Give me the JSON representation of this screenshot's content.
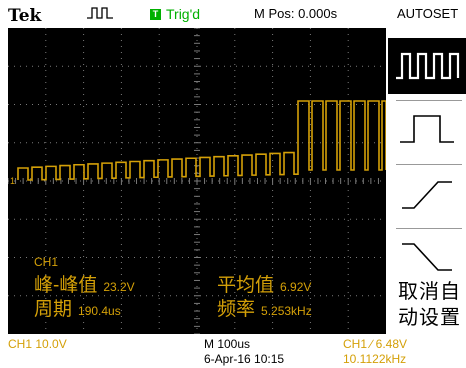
{
  "header": {
    "brand": "Tek",
    "trigger_status": "Trig'd",
    "trigger_icon_letter": "T",
    "mpos": "M Pos: 0.000s",
    "autoset": "AUTOSET"
  },
  "screen": {
    "channel_marker": "1",
    "ch_label": "CH1",
    "measurements": {
      "pk_pk_label": "峰-峰值",
      "pk_pk_value": "23.2V",
      "mean_label": "平均值",
      "mean_value": "6.92V",
      "period_label": "周期",
      "period_value": "190.4us",
      "freq_label": "频率",
      "freq_value": "5.253kHz"
    }
  },
  "menu": {
    "cancel_label_line1": "取消自",
    "cancel_label_line2": "动设置",
    "items": [
      "multi-cycle-square-icon",
      "single-cycle-square-icon",
      "rising-edge-icon",
      "falling-edge-icon"
    ]
  },
  "footer": {
    "ch1_scale": "CH1  10.0V",
    "timebase": "M 100us",
    "datetime": "6-Apr-16 10:15",
    "trigger_level": "CH1  ∕  6.48V",
    "trigger_freq": "10.1122kHz"
  },
  "colors": {
    "trace": "#d4a008",
    "grid": "#7a7a7a",
    "trig_green": "#00b000"
  }
}
